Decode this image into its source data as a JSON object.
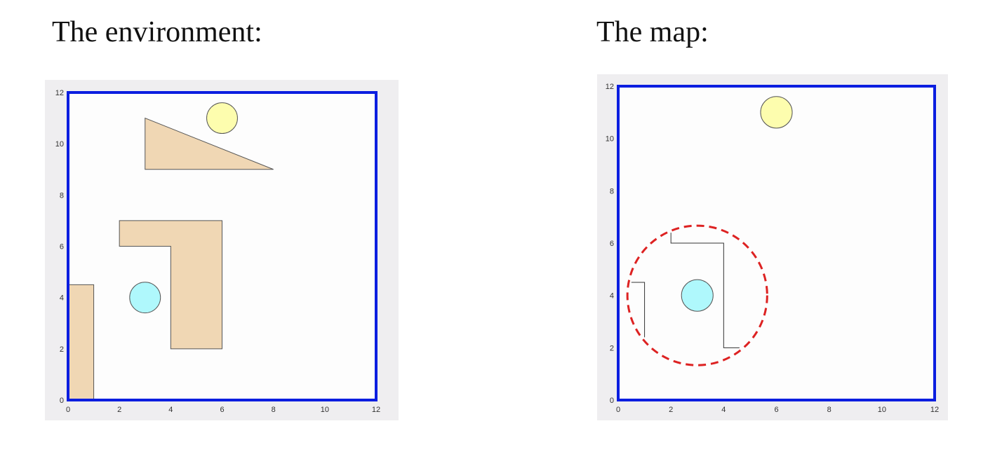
{
  "headings": {
    "environment": "The environment:",
    "map": "The map:"
  },
  "colors": {
    "border": "#0b1ee0",
    "obstacle_fill": "#f0d7b4",
    "obstacle_stroke": "#555555",
    "goal_fill": "#fdfdae",
    "robot_fill": "#aff8fc",
    "sensor_range": "#dd2222",
    "panel_bg": "#efeef0",
    "plot_bg": "#fdfdfd"
  },
  "axis": {
    "xlim": [
      0,
      12
    ],
    "ylim": [
      0,
      12
    ],
    "x_ticks": [
      "0",
      "2",
      "4",
      "6",
      "8",
      "10",
      "12"
    ],
    "y_ticks": [
      "0",
      "2",
      "4",
      "6",
      "8",
      "10",
      "12"
    ]
  },
  "environment": {
    "goal": {
      "cx": 6,
      "cy": 11,
      "r": 0.6
    },
    "robot": {
      "cx": 3,
      "cy": 4,
      "r": 0.6
    },
    "obstacles": [
      {
        "name": "triangle-obstacle",
        "points": [
          [
            3,
            11
          ],
          [
            8,
            9
          ],
          [
            3,
            9
          ]
        ]
      },
      {
        "name": "l-shaped-obstacle",
        "points": [
          [
            2,
            7
          ],
          [
            6,
            7
          ],
          [
            6,
            2
          ],
          [
            4,
            2
          ],
          [
            4,
            6
          ],
          [
            2,
            6
          ]
        ]
      },
      {
        "name": "left-wall-obstacle",
        "points": [
          [
            0,
            4.5
          ],
          [
            1,
            4.5
          ],
          [
            1,
            0
          ],
          [
            0,
            0
          ]
        ]
      }
    ]
  },
  "map": {
    "goal": {
      "cx": 6,
      "cy": 11,
      "r": 0.6
    },
    "robot": {
      "cx": 3,
      "cy": 4,
      "r": 0.6
    },
    "sensor_range": {
      "cx": 3,
      "cy": 4,
      "r": 2.65
    },
    "detected_edges": [
      {
        "name": "detected-edge-left",
        "points": [
          [
            0.5,
            4.5
          ],
          [
            1,
            4.5
          ],
          [
            1,
            2.4
          ]
        ]
      },
      {
        "name": "detected-edge-l-shape",
        "points": [
          [
            2,
            6.4
          ],
          [
            2,
            6
          ],
          [
            4,
            6
          ],
          [
            4,
            2
          ],
          [
            4.6,
            2
          ]
        ]
      }
    ]
  }
}
